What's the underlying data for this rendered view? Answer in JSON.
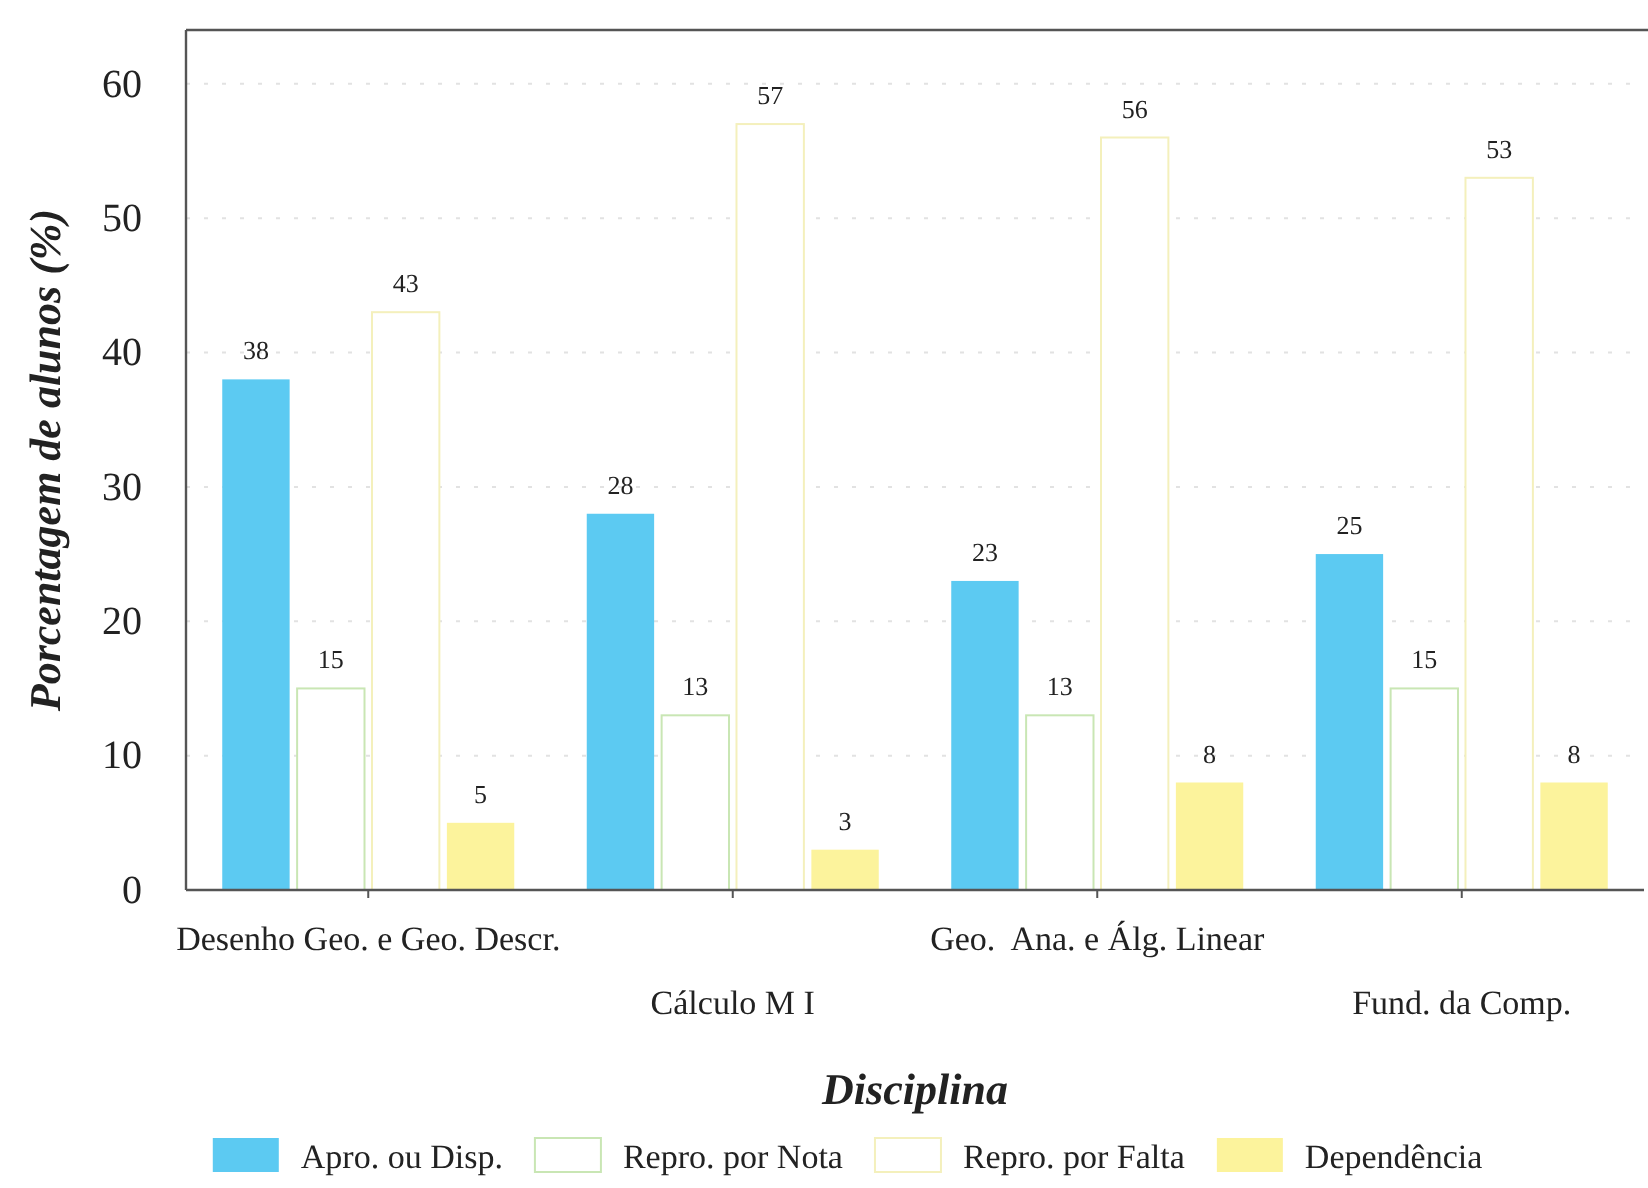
{
  "chart_data": {
    "type": "bar",
    "xlabel": "Disciplina",
    "ylabel": "Porcentagem de alunos (%)",
    "categories": [
      "Desenho Geo. e Geo. Descr.",
      "Cálculo M I",
      "Geo.  Ana. e Álg. Linear",
      "Fund. da Comp."
    ],
    "series": [
      {
        "name": "Apro. ou Disp.",
        "color": "#5ccaf2",
        "values": [
          38,
          28,
          23,
          25
        ]
      },
      {
        "name": "Repro. por Nota",
        "color": "#ffffff",
        "values": [
          15,
          13,
          13,
          15
        ]
      },
      {
        "name": "Repro. por Falta",
        "color": "#ffffff",
        "values": [
          43,
          57,
          56,
          53
        ]
      },
      {
        "name": "Dependência",
        "color": "#fcf39c",
        "values": [
          5,
          3,
          8,
          8
        ]
      }
    ],
    "ylim": [
      0,
      64
    ],
    "yticks": [
      0,
      10,
      20,
      30,
      40,
      50,
      60
    ],
    "grid": "y",
    "legend": "bottom",
    "data_labels": true
  }
}
